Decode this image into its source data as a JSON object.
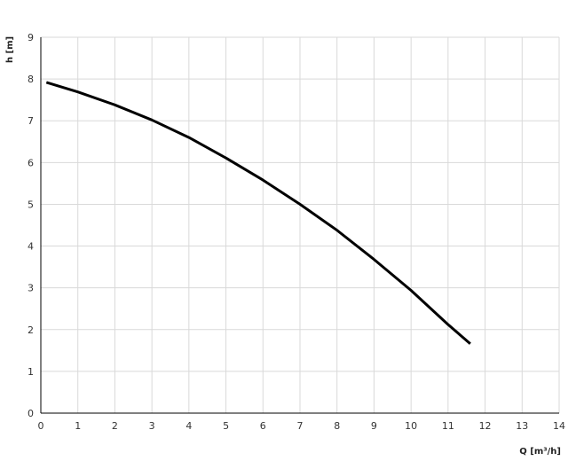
{
  "chart_data": {
    "type": "line",
    "title": "",
    "xlabel": "Q [m³/h]",
    "ylabel": "h [m]",
    "xlim": [
      0,
      14
    ],
    "ylim": [
      0,
      9
    ],
    "x_ticks": [
      "0",
      "1",
      "2",
      "3",
      "4",
      "5",
      "6",
      "7",
      "8",
      "9",
      "10",
      "11",
      "12",
      "13",
      "14"
    ],
    "y_ticks": [
      "0",
      "1",
      "2",
      "3",
      "4",
      "5",
      "6",
      "7",
      "8",
      "9"
    ],
    "grid": true,
    "line_color": "#000000",
    "grid_color": "#d9d9d9",
    "series": [
      {
        "x": [
          0.15,
          1,
          2,
          3,
          4,
          5,
          6,
          7,
          8,
          9,
          10,
          11,
          11.6
        ],
        "y": [
          7.92,
          7.69,
          7.38,
          7.02,
          6.6,
          6.11,
          5.58,
          5.0,
          4.38,
          3.68,
          2.94,
          2.12,
          1.66
        ]
      }
    ]
  }
}
